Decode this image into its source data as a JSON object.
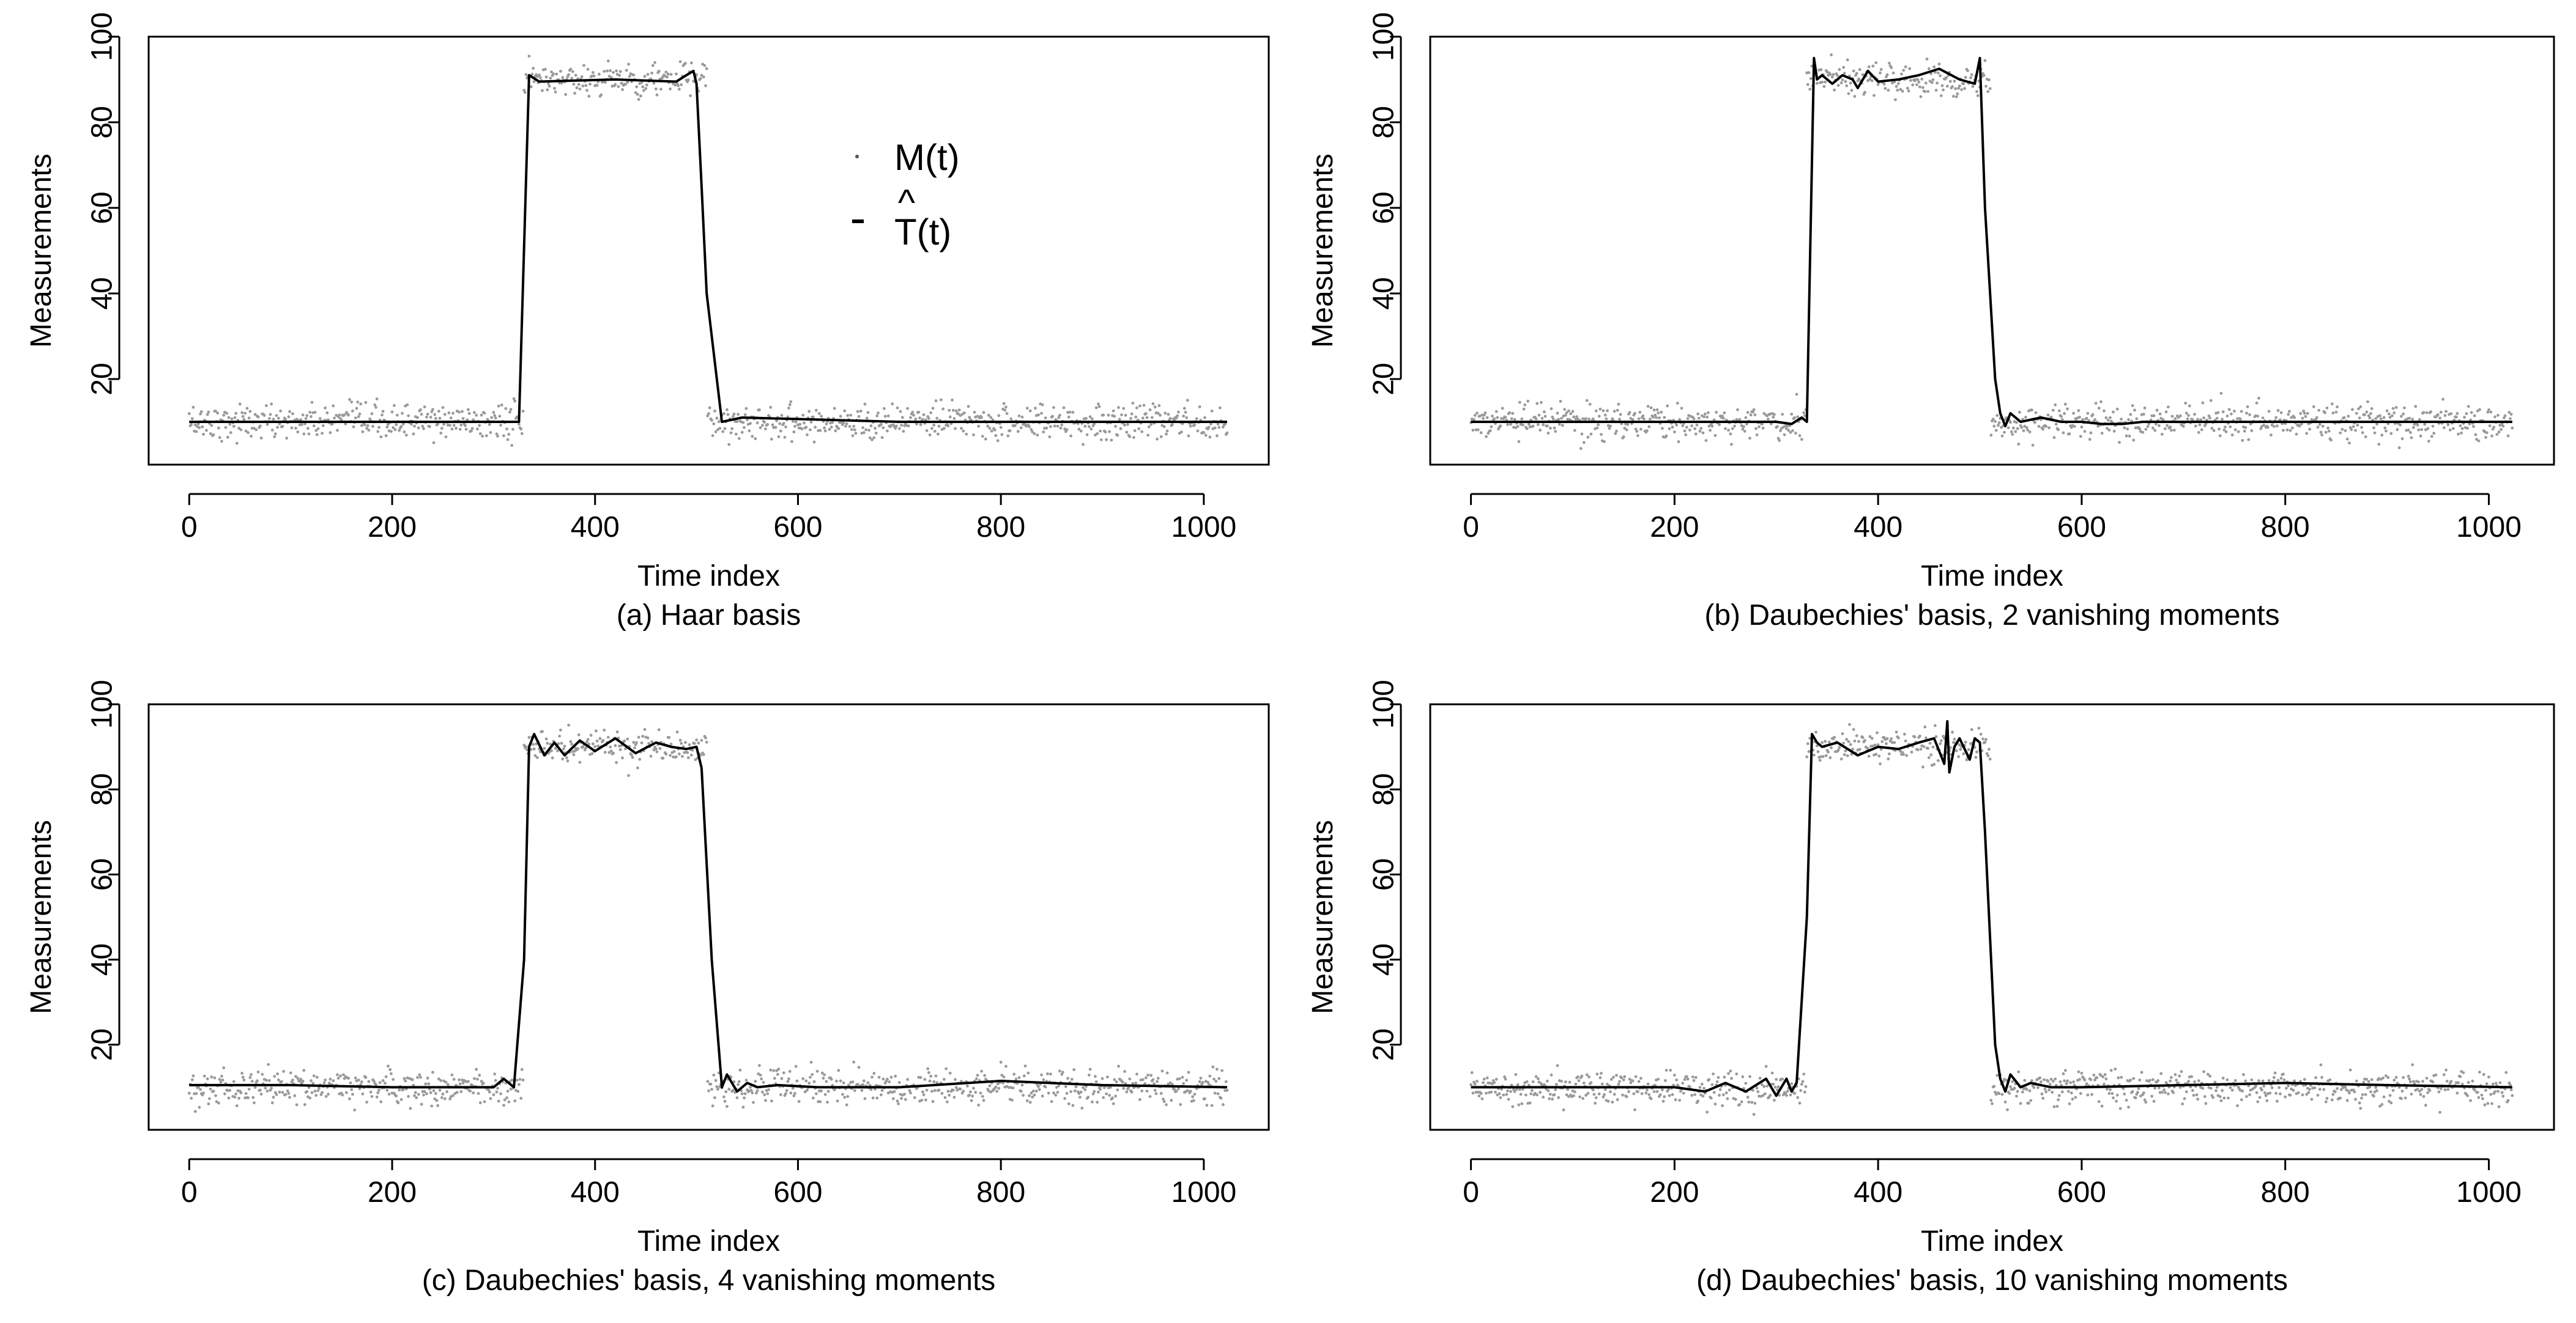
{
  "chart_data": [
    {
      "type": "line",
      "caption": "(a) Haar basis",
      "xlabel": "Time index",
      "ylabel": "Measurements",
      "xlim": [
        -40,
        1064
      ],
      "ylim": [
        0,
        100
      ],
      "xticks": [
        0,
        200,
        400,
        600,
        800,
        1000
      ],
      "yticks": [
        20,
        40,
        60,
        80,
        100
      ],
      "legend": {
        "placement": "top-center",
        "entries": [
          {
            "label": "M(t)",
            "marker": "point"
          },
          {
            "label": "T(t)",
            "hat": "^",
            "marker": "dash"
          }
        ]
      },
      "series": [
        {
          "role": "measurements",
          "style": "scattered gray points",
          "description_values": {
            "x_range": [
              0,
              1023
            ],
            "low_level": 10,
            "high_level": 90,
            "high_interval": [
              330,
              510
            ],
            "noise_sd": 2
          }
        },
        {
          "role": "estimate",
          "style": "solid black line",
          "x": [
            0,
            100,
            200,
            300,
            325,
            335,
            345,
            420,
            480,
            490,
            497,
            500,
            505,
            510,
            525,
            545,
            700,
            1023
          ],
          "y": [
            10,
            10,
            10,
            10,
            10,
            91,
            89.5,
            90,
            89.5,
            91,
            92,
            89,
            65,
            40,
            10,
            11,
            10,
            10
          ]
        }
      ]
    },
    {
      "type": "line",
      "caption": "(b) Daubechies' basis, 2 vanishing moments",
      "xlabel": "Time index",
      "ylabel": "Measurements",
      "xlim": [
        -40,
        1064
      ],
      "ylim": [
        0,
        100
      ],
      "xticks": [
        0,
        200,
        400,
        600,
        800,
        1000
      ],
      "yticks": [
        20,
        40,
        60,
        80,
        100
      ],
      "series": [
        {
          "role": "measurements",
          "style": "scattered gray points",
          "description_values": {
            "x_range": [
              0,
              1023
            ],
            "low_level": 10,
            "high_level": 90,
            "high_interval": [
              330,
              510
            ],
            "noise_sd": 2
          }
        },
        {
          "role": "estimate",
          "style": "solid black line",
          "x": [
            0,
            100,
            200,
            300,
            315,
            325,
            330,
            337,
            340,
            345,
            355,
            365,
            375,
            380,
            390,
            400,
            420,
            440,
            460,
            480,
            495,
            500,
            505,
            515,
            520,
            525,
            530,
            540,
            560,
            580,
            600,
            620,
            640,
            660,
            700,
            800,
            900,
            1023
          ],
          "y": [
            10,
            10,
            10,
            10,
            9.5,
            11,
            10,
            95,
            90,
            91,
            89,
            91,
            90,
            88,
            92,
            89.5,
            90,
            91,
            92.5,
            90,
            89,
            95,
            60,
            20,
            12,
            9,
            12,
            10,
            11,
            10,
            10,
            9.5,
            9.5,
            10,
            10,
            10,
            10,
            10
          ]
        }
      ]
    },
    {
      "type": "line",
      "caption": "(c) Daubechies' basis, 4 vanishing moments",
      "xlabel": "Time index",
      "ylabel": "Measurements",
      "xlim": [
        -40,
        1064
      ],
      "ylim": [
        0,
        100
      ],
      "xticks": [
        0,
        200,
        400,
        600,
        800,
        1000
      ],
      "yticks": [
        20,
        40,
        60,
        80,
        100
      ],
      "series": [
        {
          "role": "measurements",
          "style": "scattered gray points",
          "description_values": {
            "x_range": [
              0,
              1023
            ],
            "low_level": 10,
            "high_level": 90,
            "high_interval": [
              330,
              510
            ],
            "noise_sd": 2
          }
        },
        {
          "role": "estimate",
          "style": "solid black line",
          "x": [
            0,
            100,
            200,
            280,
            300,
            310,
            320,
            330,
            335,
            340,
            350,
            360,
            370,
            385,
            400,
            420,
            440,
            460,
            475,
            490,
            500,
            505,
            515,
            525,
            530,
            540,
            550,
            560,
            580,
            620,
            700,
            800,
            900,
            1023
          ],
          "y": [
            10.5,
            10.5,
            10,
            10,
            10,
            12,
            10,
            40,
            90,
            93,
            88,
            91,
            88,
            91.5,
            89,
            92,
            88.5,
            91,
            90,
            89.5,
            90,
            85,
            40,
            10,
            13,
            9,
            11,
            10,
            10.5,
            10,
            10,
            11.5,
            10.5,
            10
          ]
        }
      ]
    },
    {
      "type": "line",
      "caption": "(d) Daubechies' basis, 10 vanishing moments",
      "xlabel": "Time index",
      "ylabel": "Measurements",
      "xlim": [
        -40,
        1064
      ],
      "ylim": [
        0,
        100
      ],
      "xticks": [
        0,
        200,
        400,
        600,
        800,
        1000
      ],
      "yticks": [
        20,
        40,
        60,
        80,
        100
      ],
      "series": [
        {
          "role": "measurements",
          "style": "scattered gray points",
          "description_values": {
            "x_range": [
              0,
              1023
            ],
            "low_level": 10,
            "high_level": 90,
            "high_interval": [
              330,
              510
            ],
            "noise_sd": 2
          }
        },
        {
          "role": "estimate",
          "style": "solid black line",
          "x": [
            0,
            100,
            200,
            230,
            250,
            270,
            290,
            300,
            310,
            315,
            320,
            330,
            335,
            340,
            345,
            360,
            380,
            400,
            420,
            440,
            455,
            465,
            468,
            470,
            475,
            480,
            490,
            495,
            500,
            505,
            515,
            520,
            525,
            530,
            540,
            550,
            570,
            600,
            700,
            800,
            900,
            1023
          ],
          "y": [
            10,
            10,
            10,
            9,
            11,
            9,
            12,
            8,
            12,
            9,
            11,
            50,
            93,
            91,
            90,
            91,
            88,
            90,
            89.5,
            91,
            92,
            86,
            96,
            84,
            90,
            92,
            87,
            92,
            91,
            70,
            20,
            12,
            9,
            13,
            10,
            11,
            10,
            10,
            10.5,
            11,
            10.5,
            10
          ]
        }
      ]
    }
  ]
}
